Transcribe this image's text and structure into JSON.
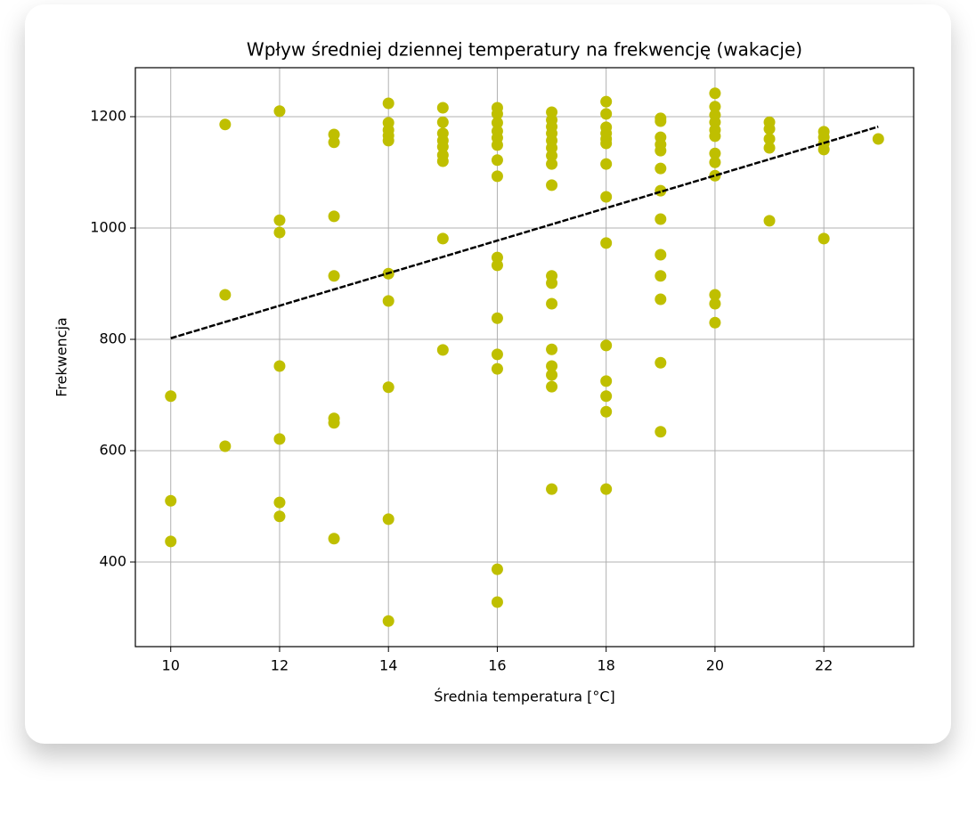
{
  "chart_data": {
    "type": "scatter",
    "title": "Wpływ średniej dziennej temperatury na frekwencję (wakacje)",
    "x_label": "Średnia temperatura [°C]",
    "y_label": "Frekwencja",
    "color": "#bfbf00",
    "grid": true,
    "xlim": [
      9.35,
      23.65
    ],
    "ylim": [
      248,
      1288
    ],
    "xticks": [
      10,
      12,
      14,
      16,
      18,
      20,
      22
    ],
    "yticks": [
      400,
      600,
      800,
      1000,
      1200
    ],
    "x": [
      10,
      10,
      10,
      11,
      11,
      11,
      12,
      12,
      12,
      12,
      12,
      12,
      12,
      13,
      13,
      13,
      13,
      13,
      13,
      13,
      14,
      14,
      14,
      14,
      14,
      14,
      14,
      14,
      14,
      14,
      15,
      15,
      15,
      15,
      15,
      15,
      15,
      15,
      15,
      16,
      16,
      16,
      16,
      16,
      16,
      16,
      16,
      16,
      16,
      16,
      16,
      16,
      16,
      16,
      17,
      17,
      17,
      17,
      17,
      17,
      17,
      17,
      17,
      17,
      17,
      17,
      17,
      17,
      17,
      17,
      17,
      18,
      18,
      18,
      18,
      18,
      18,
      18,
      18,
      18,
      18,
      18,
      18,
      18,
      18,
      19,
      19,
      19,
      19,
      19,
      19,
      19,
      19,
      19,
      19,
      19,
      19,
      19,
      20,
      20,
      20,
      20,
      20,
      20,
      20,
      20,
      20,
      20,
      20,
      20,
      21,
      21,
      21,
      21,
      21,
      22,
      22,
      22,
      22,
      22,
      23
    ],
    "values": [
      698,
      510,
      437,
      1186,
      880,
      608,
      1210,
      1014,
      992,
      752,
      621,
      507,
      482,
      1168,
      1154,
      1021,
      914,
      658,
      650,
      442,
      1224,
      1189,
      1176,
      1166,
      1157,
      918,
      869,
      714,
      477,
      294,
      1216,
      1190,
      1170,
      1157,
      1146,
      1131,
      1120,
      981,
      781,
      1216,
      1205,
      1189,
      1174,
      1162,
      1149,
      1122,
      1093,
      947,
      933,
      838,
      773,
      747,
      387,
      328,
      1208,
      1194,
      1182,
      1170,
      1157,
      1144,
      1130,
      1115,
      1077,
      914,
      901,
      864,
      782,
      752,
      736,
      715,
      531,
      1227,
      1205,
      1181,
      1170,
      1160,
      1152,
      1115,
      1056,
      973,
      789,
      725,
      698,
      670,
      531,
      1197,
      1192,
      1163,
      1150,
      1139,
      1107,
      1067,
      1016,
      952,
      914,
      872,
      758,
      634,
      1242,
      1218,
      1203,
      1190,
      1176,
      1165,
      1134,
      1118,
      1094,
      880,
      864,
      830,
      1190,
      1178,
      1160,
      1144,
      1013,
      1173,
      1163,
      1152,
      1141,
      981,
      1160
    ],
    "trend_line": {
      "x": [
        10,
        23
      ],
      "values": [
        802,
        1182
      ],
      "color": "#000000"
    }
  }
}
